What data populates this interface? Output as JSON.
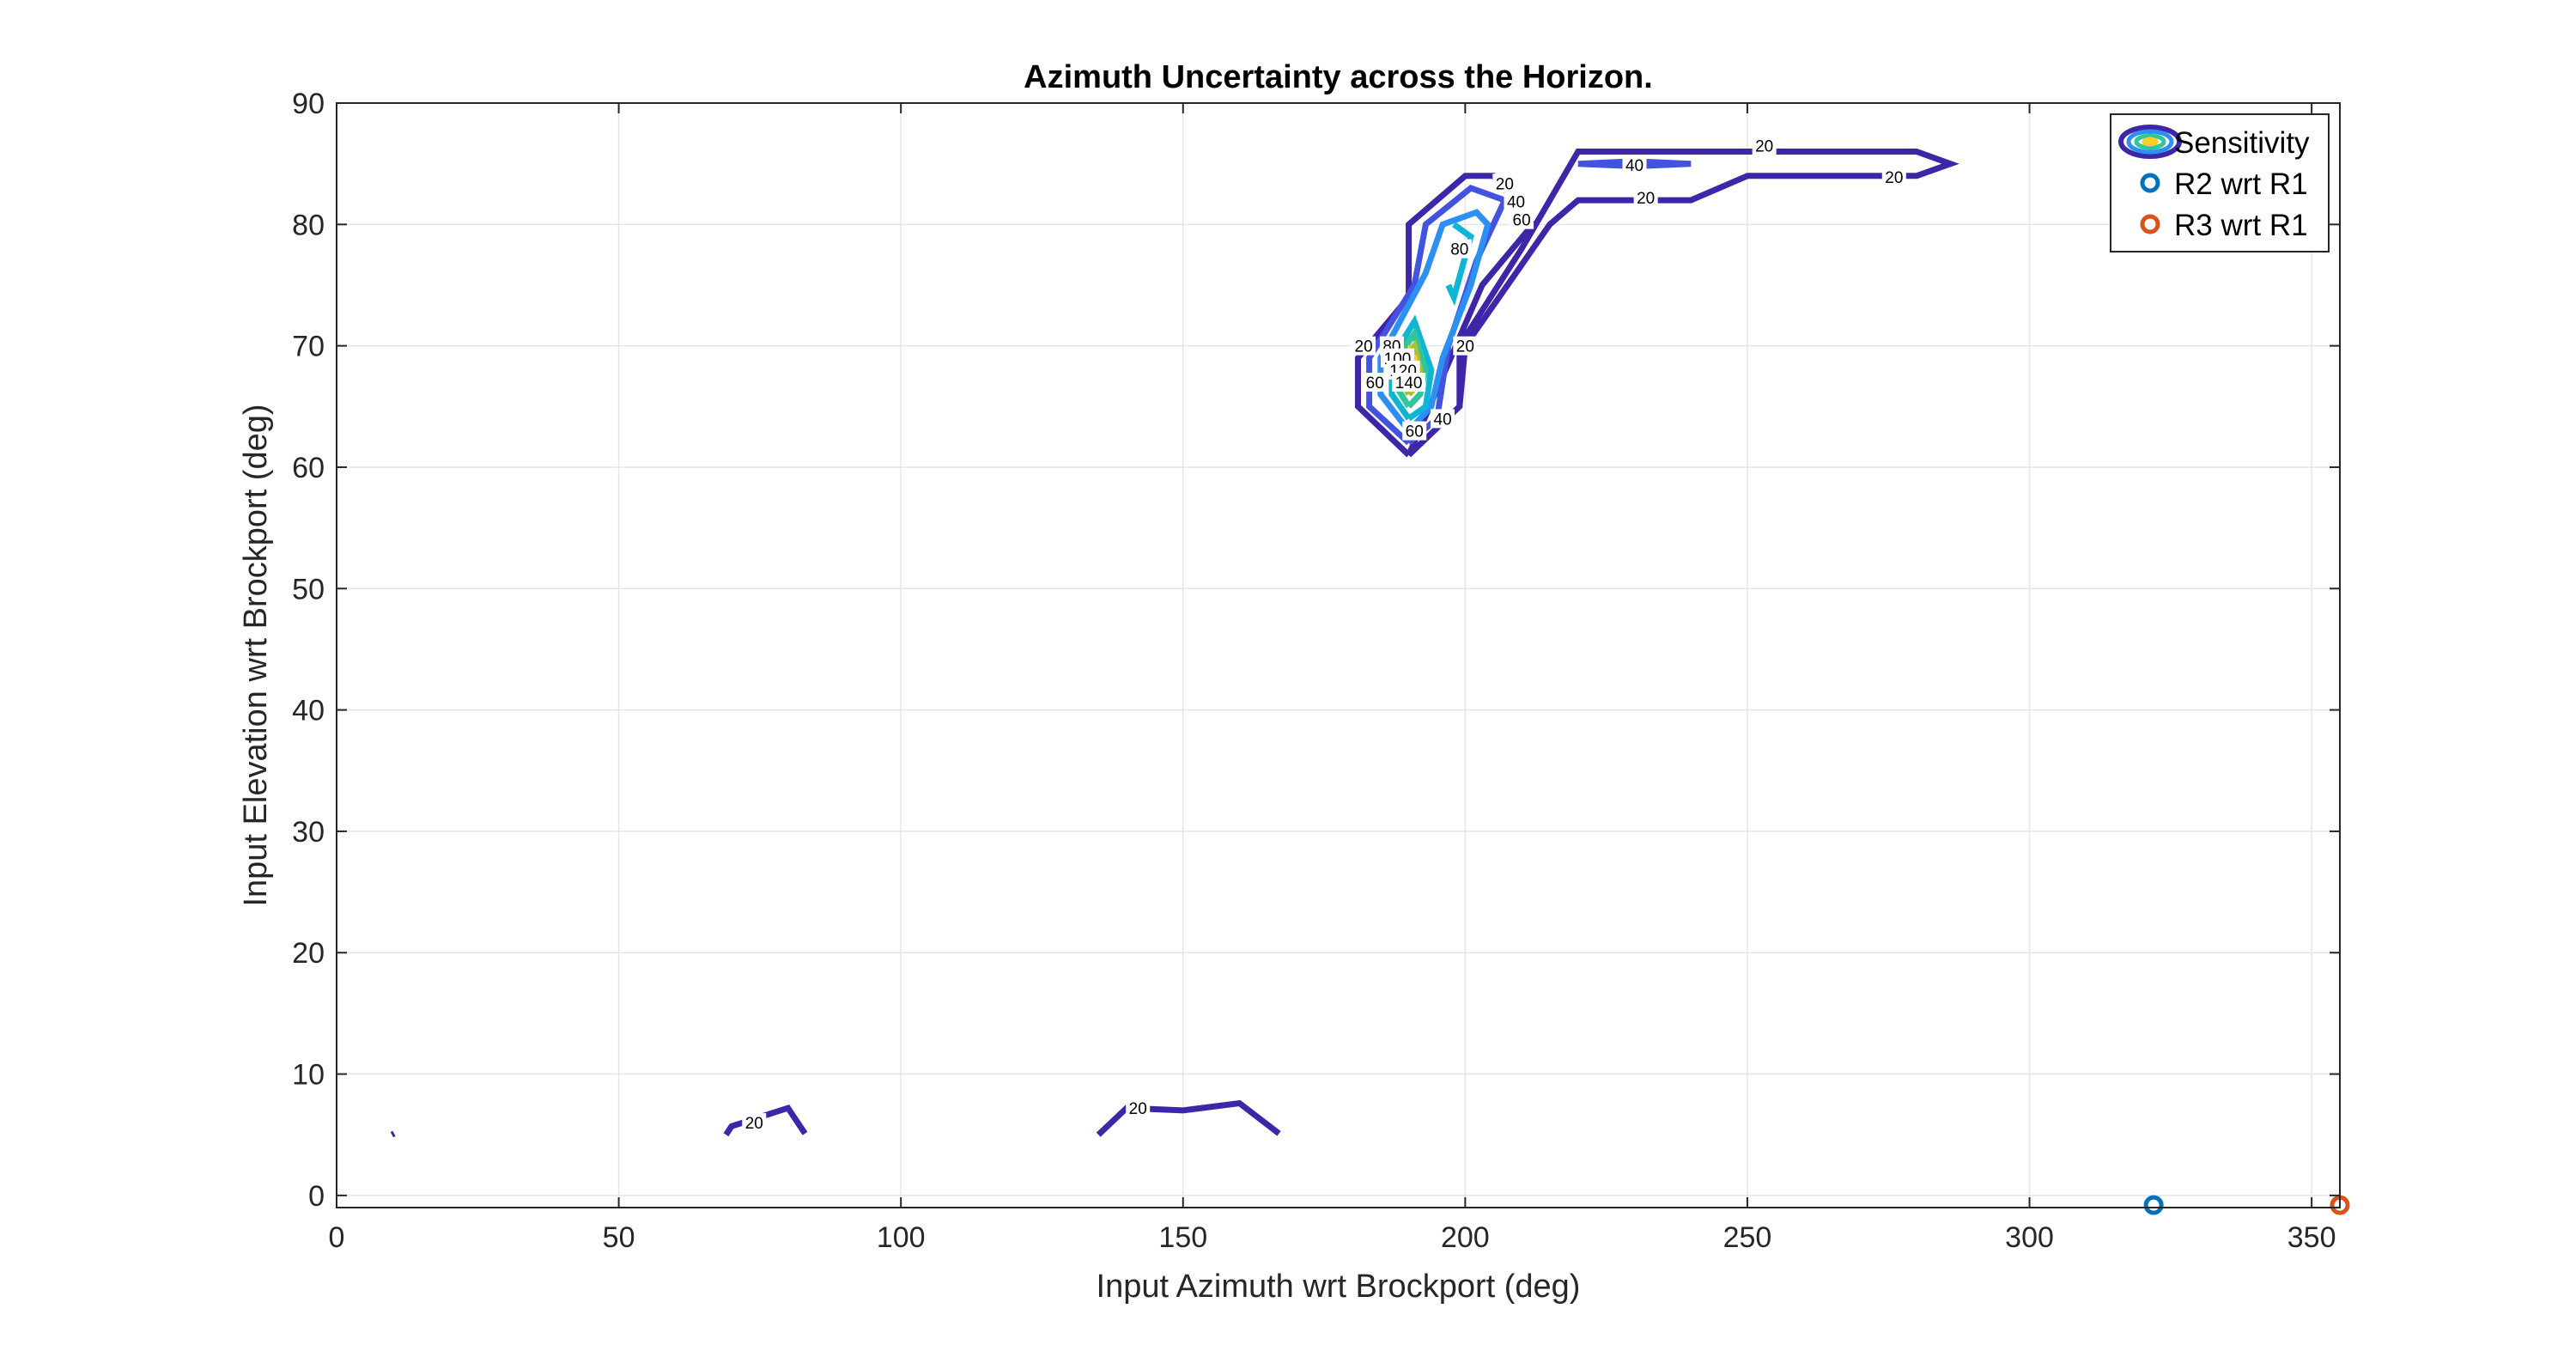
{
  "chart_data": {
    "type": "contour",
    "title": "Azimuth Uncertainty across the Horizon.",
    "xlabel": "Input Azimuth wrt Brockport (deg)",
    "ylabel": "Input Elevation wrt Brockport (deg)",
    "xlim": [
      0,
      355
    ],
    "ylim": [
      -1,
      90
    ],
    "xticks": [
      0,
      50,
      100,
      150,
      200,
      250,
      300,
      350
    ],
    "yticks": [
      0,
      10,
      20,
      30,
      40,
      50,
      60,
      70,
      80,
      90
    ],
    "grid": true,
    "legend": {
      "placement": "top-right",
      "entries": [
        {
          "label": "Sensitivity",
          "marker": "contour"
        },
        {
          "label": "R2 wrt R1",
          "marker": "circle",
          "color": "#0072BD"
        },
        {
          "label": "R3 wrt R1",
          "marker": "circle",
          "color": "#D95319"
        }
      ]
    },
    "contours": [
      {
        "level": 20,
        "color": "#3E26A8",
        "points": [
          [
            190,
            61
          ],
          [
            181,
            65
          ],
          [
            181,
            69
          ],
          [
            190,
            74
          ],
          [
            190,
            80
          ],
          [
            200,
            84
          ],
          [
            205,
            84
          ],
          [
            212,
            80
          ],
          [
            203,
            75
          ],
          [
            190,
            61
          ]
        ]
      },
      {
        "level": 20,
        "color": "#3E26A8",
        "points": [
          [
            190,
            61
          ],
          [
            199,
            65
          ],
          [
            199,
            70
          ],
          [
            210,
            78
          ],
          [
            215,
            82
          ],
          [
            220,
            86
          ],
          [
            237,
            86
          ],
          [
            250,
            86
          ],
          [
            270,
            86
          ],
          [
            280,
            86
          ],
          [
            286,
            85
          ],
          [
            280,
            84
          ],
          [
            270,
            84
          ],
          [
            250,
            84
          ],
          [
            240,
            82
          ],
          [
            220,
            82
          ],
          [
            215,
            80
          ],
          [
            200,
            70
          ],
          [
            199,
            65
          ]
        ]
      },
      {
        "level": 20,
        "color": "#3E26A8",
        "points": [
          [
            69,
            5
          ],
          [
            70,
            5.7
          ],
          [
            80,
            7.2
          ],
          [
            83,
            5.1
          ]
        ]
      },
      {
        "level": 20,
        "color": "#3E26A8",
        "points": [
          [
            135,
            5
          ],
          [
            140,
            7.2
          ],
          [
            150,
            7
          ],
          [
            160,
            7.6
          ],
          [
            167,
            5.1
          ]
        ]
      },
      {
        "level": 20,
        "color": "#3E26A8",
        "points": [
          [
            9.8,
            5
          ],
          [
            10.2,
            5.1
          ]
        ]
      },
      {
        "level": 40,
        "color": "#4253E0",
        "points": [
          [
            220,
            85
          ],
          [
            230,
            85.2
          ],
          [
            240,
            85
          ],
          [
            230,
            84.8
          ],
          [
            220,
            85
          ]
        ]
      },
      {
        "level": 40,
        "color": "#4253E0",
        "points": [
          [
            190,
            62
          ],
          [
            183,
            65
          ],
          [
            183,
            69
          ],
          [
            191,
            75
          ],
          [
            193,
            80
          ],
          [
            201,
            83
          ],
          [
            207,
            82
          ],
          [
            202,
            77
          ],
          [
            197,
            70
          ],
          [
            195,
            64
          ],
          [
            190,
            62
          ]
        ]
      },
      {
        "level": 60,
        "color": "#2C8FF2",
        "points": [
          [
            190,
            63
          ],
          [
            185,
            66
          ],
          [
            185,
            69
          ],
          [
            193,
            76
          ],
          [
            196,
            80
          ],
          [
            202,
            81
          ],
          [
            204,
            80
          ],
          [
            201,
            75
          ],
          [
            196,
            69
          ],
          [
            194,
            65
          ],
          [
            190,
            63
          ]
        ]
      },
      {
        "level": 80,
        "color": "#0FB5D4",
        "points": [
          [
            198,
            80
          ],
          [
            201,
            79
          ],
          [
            198,
            74
          ],
          [
            197,
            75
          ]
        ]
      },
      {
        "level": 80,
        "color": "#0FB5D4",
        "points": [
          [
            190,
            64
          ],
          [
            187,
            66
          ],
          [
            187,
            69
          ],
          [
            191,
            72
          ],
          [
            194,
            68
          ],
          [
            193,
            65
          ],
          [
            190,
            64
          ]
        ]
      },
      {
        "level": 100,
        "color": "#31C59A",
        "points": [
          [
            190,
            65
          ],
          [
            188,
            66.5
          ],
          [
            188,
            69
          ],
          [
            191,
            71
          ],
          [
            193,
            68
          ],
          [
            192,
            66
          ],
          [
            190,
            65
          ]
        ]
      },
      {
        "level": 120,
        "color": "#A8C238",
        "points": [
          [
            190,
            66
          ],
          [
            189,
            67
          ],
          [
            189,
            69
          ],
          [
            191,
            70
          ],
          [
            192,
            68
          ],
          [
            191,
            66.5
          ],
          [
            190,
            66
          ]
        ]
      },
      {
        "level": 140,
        "color": "#F9CF2C",
        "points": [
          [
            190,
            67
          ],
          [
            189.6,
            68
          ],
          [
            190.2,
            69.5
          ],
          [
            191,
            69
          ],
          [
            190.8,
            67.5
          ],
          [
            190,
            67
          ]
        ]
      }
    ],
    "contour_labels": [
      {
        "text": "20",
        "x": 207,
        "y": 83.4
      },
      {
        "text": "40",
        "x": 209,
        "y": 81.9
      },
      {
        "text": "60",
        "x": 210,
        "y": 80.4
      },
      {
        "text": "80",
        "x": 199,
        "y": 78
      },
      {
        "text": "40",
        "x": 230,
        "y": 84.9
      },
      {
        "text": "20",
        "x": 253,
        "y": 86.5
      },
      {
        "text": "20",
        "x": 276,
        "y": 83.9
      },
      {
        "text": "20",
        "x": 232,
        "y": 82.2
      },
      {
        "text": "20",
        "x": 182,
        "y": 70
      },
      {
        "text": "60",
        "x": 184,
        "y": 67
      },
      {
        "text": "80",
        "x": 187,
        "y": 70
      },
      {
        "text": "100",
        "x": 188,
        "y": 69
      },
      {
        "text": "120",
        "x": 189,
        "y": 68
      },
      {
        "text": "140",
        "x": 190,
        "y": 67
      },
      {
        "text": "20",
        "x": 200,
        "y": 70
      },
      {
        "text": "40",
        "x": 196,
        "y": 64
      },
      {
        "text": "60",
        "x": 191,
        "y": 63
      },
      {
        "text": "20",
        "x": 74,
        "y": 6
      },
      {
        "text": "20",
        "x": 142,
        "y": 7.2
      }
    ],
    "series": [
      {
        "name": "R2 wrt R1",
        "type": "scatter",
        "color": "#0072BD",
        "x": [
          322
        ],
        "y": [
          -0.8
        ]
      },
      {
        "name": "R3 wrt R1",
        "type": "scatter",
        "color": "#D95319",
        "x": [
          355
        ],
        "y": [
          -0.8
        ]
      }
    ]
  }
}
